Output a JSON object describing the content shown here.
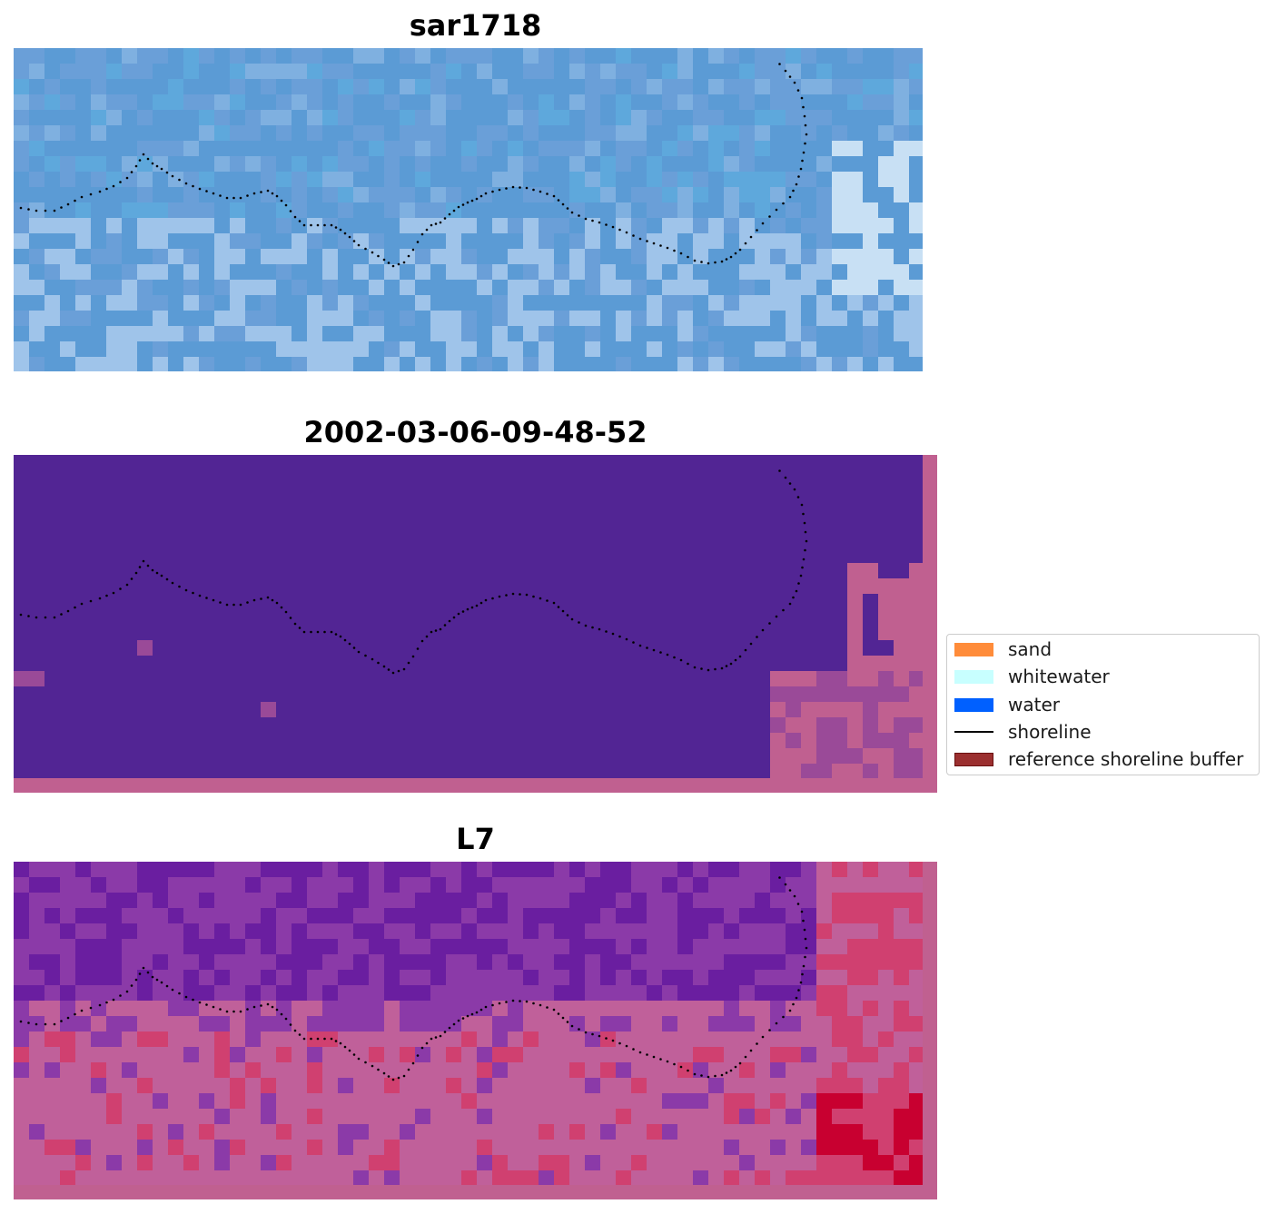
{
  "panels": [
    {
      "title": "sar1718",
      "colors": [
        "#5b9bd5",
        "#6a9fd8",
        "#7fb0e0",
        "#5ea8dc",
        "#9fc4ea",
        "#c8e0f4"
      ],
      "base": "#6ea6dc"
    },
    {
      "title": "2002-03-06-09-48-52",
      "colors": [
        "#522594",
        "#c06090"
      ],
      "base": "#522594"
    },
    {
      "title": "L7",
      "colors": [
        "#6a1ea0",
        "#8b3aa8",
        "#c0609a",
        "#d04070",
        "#c80030"
      ],
      "base": "#7a2ca8"
    }
  ],
  "legend": {
    "items": [
      {
        "label": "sand",
        "color": "#ff8c3a",
        "kind": "patch"
      },
      {
        "label": "whitewater",
        "color": "#c8ffff",
        "kind": "patch"
      },
      {
        "label": "water",
        "color": "#0060ff",
        "kind": "patch"
      },
      {
        "label": "shoreline",
        "color": "#000000",
        "kind": "line"
      },
      {
        "label": "reference shoreline buffer",
        "color": "#9b2f2f",
        "kind": "patch"
      }
    ]
  }
}
